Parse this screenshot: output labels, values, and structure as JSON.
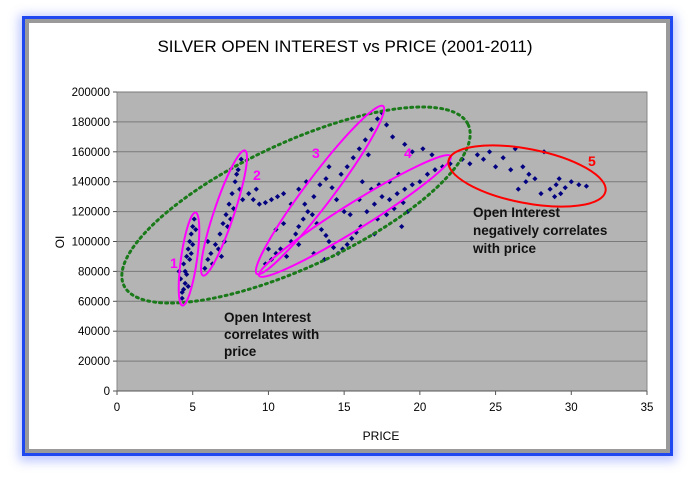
{
  "chart_data": {
    "type": "scatter",
    "title": "SILVER OPEN INTEREST vs PRICE (2001-2011)",
    "xlabel": "PRICE",
    "ylabel": "OI",
    "xlim": [
      0,
      35
    ],
    "ylim": [
      0,
      200000
    ],
    "xticks": [
      "0",
      "5",
      "10",
      "15",
      "20",
      "25",
      "30",
      "35"
    ],
    "yticks": [
      "0",
      "20000",
      "40000",
      "60000",
      "80000",
      "100000",
      "120000",
      "140000",
      "160000",
      "180000",
      "200000"
    ],
    "grid": "horizontal",
    "legend": "none",
    "plot_background": "#b4b4b4",
    "marker_color": "#000080",
    "points": [
      [
        4.3,
        62000
      ],
      [
        4.4,
        68000
      ],
      [
        4.2,
        75000
      ],
      [
        4.5,
        80000
      ],
      [
        4.4,
        85000
      ],
      [
        4.6,
        90000
      ],
      [
        4.7,
        95000
      ],
      [
        4.8,
        100000
      ],
      [
        4.9,
        105000
      ],
      [
        5.0,
        110000
      ],
      [
        5.1,
        115000
      ],
      [
        4.5,
        72000
      ],
      [
        4.6,
        78000
      ],
      [
        4.8,
        88000
      ],
      [
        5.0,
        98000
      ],
      [
        4.7,
        70000
      ],
      [
        4.9,
        92000
      ],
      [
        5.2,
        108000
      ],
      [
        4.3,
        66000
      ],
      [
        4.1,
        80000
      ],
      [
        5.8,
        82000
      ],
      [
        6.0,
        88000
      ],
      [
        6.2,
        92000
      ],
      [
        6.5,
        98000
      ],
      [
        6.8,
        105000
      ],
      [
        7.0,
        112000
      ],
      [
        7.2,
        118000
      ],
      [
        7.4,
        125000
      ],
      [
        7.6,
        132000
      ],
      [
        7.8,
        140000
      ],
      [
        8.0,
        148000
      ],
      [
        8.2,
        155000
      ],
      [
        6.3,
        85000
      ],
      [
        6.7,
        95000
      ],
      [
        7.1,
        100000
      ],
      [
        7.5,
        115000
      ],
      [
        7.7,
        122000
      ],
      [
        8.1,
        135000
      ],
      [
        7.3,
        110000
      ],
      [
        6.0,
        100000
      ],
      [
        6.9,
        90000
      ],
      [
        8.3,
        128000
      ],
      [
        7.9,
        145000
      ],
      [
        8.7,
        132000
      ],
      [
        9.0,
        128000
      ],
      [
        9.4,
        125000
      ],
      [
        9.8,
        126000
      ],
      [
        10.2,
        128000
      ],
      [
        10.6,
        130000
      ],
      [
        11.0,
        132000
      ],
      [
        9.2,
        135000
      ],
      [
        9.8,
        85000
      ],
      [
        10.2,
        88000
      ],
      [
        10.5,
        92000
      ],
      [
        10.8,
        95000
      ],
      [
        11.2,
        90000
      ],
      [
        11.5,
        100000
      ],
      [
        11.8,
        105000
      ],
      [
        12.0,
        110000
      ],
      [
        12.3,
        115000
      ],
      [
        12.6,
        120000
      ],
      [
        12.9,
        118000
      ],
      [
        13.2,
        112000
      ],
      [
        13.5,
        108000
      ],
      [
        13.8,
        104000
      ],
      [
        14.0,
        100000
      ],
      [
        14.3,
        96000
      ],
      [
        14.6,
        92000
      ],
      [
        14.9,
        95000
      ],
      [
        15.2,
        98000
      ],
      [
        15.5,
        102000
      ],
      [
        15.8,
        106000
      ],
      [
        16.1,
        110000
      ],
      [
        12.4,
        125000
      ],
      [
        13.0,
        130000
      ],
      [
        13.4,
        138000
      ],
      [
        13.8,
        142000
      ],
      [
        14.2,
        136000
      ],
      [
        14.5,
        128000
      ],
      [
        15.0,
        120000
      ],
      [
        15.4,
        118000
      ],
      [
        11.0,
        112000
      ],
      [
        10.5,
        108000
      ],
      [
        12.0,
        98000
      ],
      [
        13.0,
        92000
      ],
      [
        13.7,
        88000
      ],
      [
        10.0,
        95000
      ],
      [
        14.8,
        145000
      ],
      [
        15.2,
        150000
      ],
      [
        15.6,
        156000
      ],
      [
        16.0,
        162000
      ],
      [
        16.4,
        168000
      ],
      [
        16.8,
        175000
      ],
      [
        17.2,
        182000
      ],
      [
        17.5,
        186000
      ],
      [
        16.6,
        158000
      ],
      [
        16.2,
        140000
      ],
      [
        14.0,
        150000
      ],
      [
        12.5,
        140000
      ],
      [
        12.0,
        135000
      ],
      [
        11.5,
        125000
      ],
      [
        16.5,
        120000
      ],
      [
        17.0,
        125000
      ],
      [
        17.5,
        130000
      ],
      [
        18.0,
        128000
      ],
      [
        18.5,
        132000
      ],
      [
        19.0,
        135000
      ],
      [
        19.5,
        138000
      ],
      [
        20.0,
        140000
      ],
      [
        20.5,
        145000
      ],
      [
        21.0,
        148000
      ],
      [
        21.5,
        150000
      ],
      [
        22.0,
        152000
      ],
      [
        17.2,
        115000
      ],
      [
        17.8,
        118000
      ],
      [
        18.3,
        122000
      ],
      [
        18.8,
        110000
      ],
      [
        19.2,
        120000
      ],
      [
        17.0,
        105000
      ],
      [
        16.8,
        135000
      ],
      [
        18.0,
        140000
      ],
      [
        18.6,
        145000
      ],
      [
        19.5,
        160000
      ],
      [
        20.2,
        162000
      ],
      [
        18.2,
        170000
      ],
      [
        17.8,
        178000
      ],
      [
        19.0,
        165000
      ],
      [
        20.8,
        158000
      ],
      [
        17.3,
        138000
      ],
      [
        18.9,
        126000
      ],
      [
        16.0,
        128000
      ],
      [
        22.8,
        155000
      ],
      [
        23.3,
        152000
      ],
      [
        23.8,
        158000
      ],
      [
        24.2,
        155000
      ],
      [
        24.6,
        160000
      ],
      [
        25.0,
        150000
      ],
      [
        25.5,
        156000
      ],
      [
        26.0,
        148000
      ],
      [
        26.3,
        162000
      ],
      [
        26.8,
        150000
      ],
      [
        27.2,
        145000
      ],
      [
        27.6,
        142000
      ],
      [
        28.2,
        160000
      ],
      [
        28.0,
        132000
      ],
      [
        28.6,
        135000
      ],
      [
        29.0,
        138000
      ],
      [
        29.3,
        132000
      ],
      [
        29.6,
        136000
      ],
      [
        29.2,
        142000
      ],
      [
        30.0,
        140000
      ],
      [
        30.5,
        138000
      ],
      [
        31.0,
        137000
      ],
      [
        27.0,
        140000
      ],
      [
        26.5,
        135000
      ],
      [
        28.9,
        130000
      ]
    ],
    "annotations": {
      "regions": [
        {
          "label": "1",
          "color": "#ff00ff"
        },
        {
          "label": "2",
          "color": "#ff00ff"
        },
        {
          "label": "3",
          "color": "#ff00ff"
        },
        {
          "label": "4",
          "color": "#ff00ff"
        },
        {
          "label": "5",
          "color": "#ff0000"
        }
      ],
      "overall_color": "#1a7a1a",
      "positive_note": [
        "Open Interest",
        "correlates with",
        "price"
      ],
      "negative_note": [
        "Open Interest",
        "negatively correlates",
        "with price"
      ]
    }
  }
}
